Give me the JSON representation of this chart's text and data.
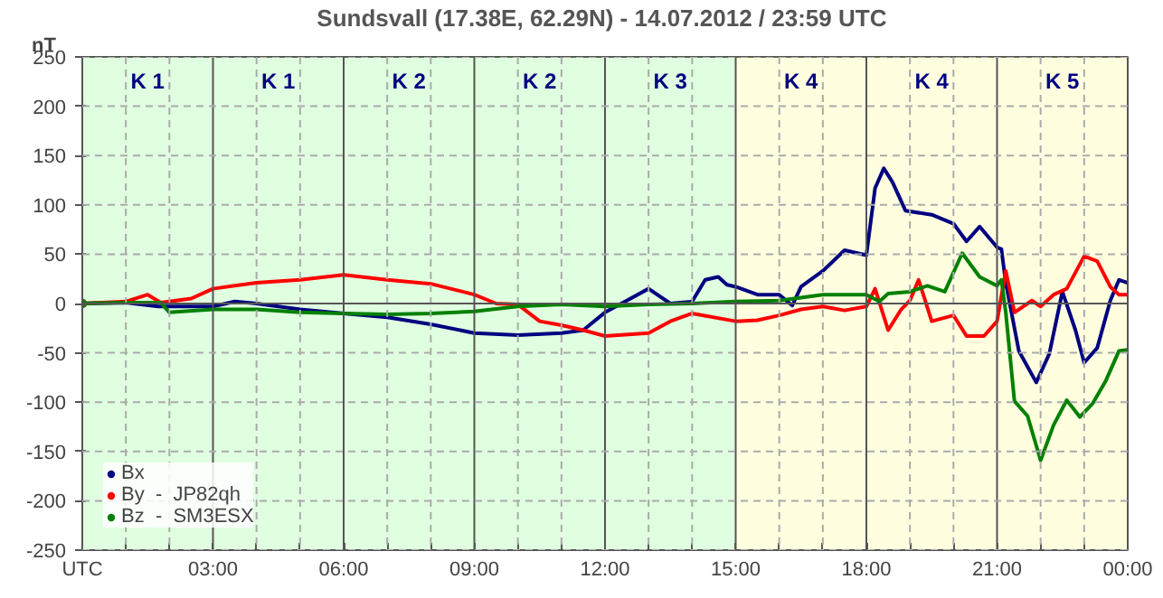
{
  "chart_data": {
    "type": "line",
    "title": "Sundsvall (17.38E, 62.29N) - 14.07.2012 / 23:59  UTC",
    "ylabel": "nT",
    "xlim": [
      0,
      24
    ],
    "ylim": [
      -250,
      250
    ],
    "xticks": [
      {
        "value": 0,
        "label": "UTC"
      },
      {
        "value": 1,
        "label": null
      },
      {
        "value": 2,
        "label": null
      },
      {
        "value": 3,
        "label": "03:00"
      },
      {
        "value": 4,
        "label": null
      },
      {
        "value": 5,
        "label": null
      },
      {
        "value": 6,
        "label": "06:00"
      },
      {
        "value": 7,
        "label": null
      },
      {
        "value": 8,
        "label": null
      },
      {
        "value": 9,
        "label": "09:00"
      },
      {
        "value": 10,
        "label": null
      },
      {
        "value": 11,
        "label": null
      },
      {
        "value": 12,
        "label": "12:00"
      },
      {
        "value": 13,
        "label": null
      },
      {
        "value": 14,
        "label": null
      },
      {
        "value": 15,
        "label": "15:00"
      },
      {
        "value": 16,
        "label": null
      },
      {
        "value": 17,
        "label": null
      },
      {
        "value": 18,
        "label": "18:00"
      },
      {
        "value": 19,
        "label": null
      },
      {
        "value": 20,
        "label": null
      },
      {
        "value": 21,
        "label": "21:00"
      },
      {
        "value": 22,
        "label": null
      },
      {
        "value": 23,
        "label": null
      },
      {
        "value": 24,
        "label": "00:00"
      }
    ],
    "yticks": [
      -250,
      -200,
      -150,
      -100,
      -50,
      0,
      50,
      100,
      150,
      200,
      250
    ],
    "grid": true,
    "legend": "bottom left",
    "marker": "none",
    "line_style": "solid",
    "annotations": [
      "K 1",
      "K 1",
      "K 2",
      "K 2",
      "K 3",
      "K 4",
      "K 4",
      "K 5"
    ],
    "bands": [
      {
        "axis": "x",
        "from": 0,
        "to": 15,
        "label": null,
        "color": "#00ff00"
      },
      {
        "axis": "x",
        "from": 15,
        "to": 24,
        "label": null,
        "color": "#ffff00"
      }
    ],
    "series": [
      {
        "name": "Bx",
        "color": "#000080",
        "x": [
          0,
          1,
          1.74,
          3,
          3.5,
          4,
          5,
          6,
          7,
          8,
          9,
          10,
          11,
          11.5,
          12,
          12.5,
          13,
          13.5,
          14,
          14.3,
          14.6,
          14.8,
          15,
          15.5,
          16,
          16.3,
          16.5,
          17,
          17.5,
          18,
          18.2,
          18.4,
          18.6,
          18.9,
          19.5,
          20,
          20.3,
          20.6,
          21,
          21.1,
          21.2,
          21.5,
          21.9,
          22.2,
          22.5,
          22.8,
          23,
          23.3,
          23.6,
          23.8,
          24
        ],
        "values": [
          0,
          1,
          -3,
          -3,
          2,
          0,
          -6,
          -10,
          -14,
          -21,
          -30,
          -32,
          -30,
          -27,
          -9,
          3,
          15,
          0,
          2,
          24,
          27,
          19,
          17,
          9,
          9,
          -2,
          17,
          33,
          54,
          49,
          117,
          137,
          123,
          94,
          90,
          81,
          63,
          78,
          57,
          55,
          21,
          -48,
          -80,
          -51,
          12,
          -27,
          -60,
          -45,
          3,
          24,
          21
        ]
      },
      {
        "name": "By  -  JP82qh",
        "color": "#ff0000",
        "x": [
          0,
          1,
          1.5,
          1.8,
          2.5,
          3,
          4,
          5,
          6,
          7,
          8,
          9,
          9.5,
          10,
          10.5,
          11,
          11.5,
          12,
          13,
          13.5,
          14,
          15,
          15.5,
          16,
          16.5,
          17,
          17.5,
          18,
          18.2,
          18.5,
          18.8,
          19,
          19.2,
          19.5,
          20,
          20.3,
          20.7,
          21,
          21.2,
          21.4,
          21.8,
          22,
          22.3,
          22.6,
          23,
          23.3,
          23.6,
          23.8,
          24
        ],
        "values": [
          0,
          2,
          9,
          1,
          5,
          15,
          21,
          24,
          29,
          24,
          20,
          9,
          0,
          -1,
          -18,
          -22,
          -27,
          -33,
          -30,
          -18,
          -10,
          -18,
          -17,
          -12,
          -6,
          -3,
          -7,
          -3,
          15,
          -27,
          -6,
          3,
          24,
          -18,
          -12,
          -33,
          -33,
          -18,
          33,
          -9,
          3,
          -3,
          9,
          15,
          48,
          43,
          17,
          9,
          9
        ]
      },
      {
        "name": "Bz  -  SM3ESX",
        "color": "#008000",
        "x": [
          0,
          1,
          1.8,
          2,
          3,
          4,
          5,
          6,
          7,
          8,
          9,
          10,
          11,
          12,
          13,
          14,
          15,
          16,
          17,
          18,
          18.3,
          18.5,
          19,
          19.4,
          19.8,
          20.2,
          20.6,
          21,
          21.1,
          21.2,
          21.4,
          21.7,
          22,
          22.3,
          22.6,
          22.9,
          23.2,
          23.5,
          23.8,
          24
        ],
        "values": [
          0,
          1,
          1,
          -9,
          -6,
          -6,
          -9,
          -10,
          -11,
          -10,
          -8,
          -3,
          -1,
          -3,
          -1,
          0,
          2,
          3,
          9,
          9,
          2,
          10,
          12,
          18,
          12,
          51,
          27,
          18,
          24,
          -9,
          -99,
          -114,
          -159,
          -123,
          -98,
          -115,
          -101,
          -78,
          -48,
          -47
        ]
      }
    ]
  }
}
